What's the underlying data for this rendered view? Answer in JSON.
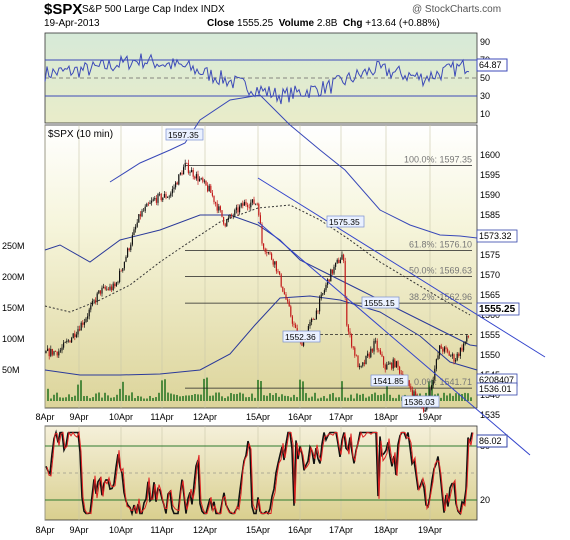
{
  "header": {
    "symbol": "$SPX",
    "name": "S&P 500 Large Cap Index",
    "exchange": "INDX",
    "source": "@ StockCharts.com",
    "date": "19-Apr-2013",
    "close_label": "Close",
    "close_value": "1555.25",
    "volume_label": "Volume",
    "volume_value": "2.8B",
    "chg_label": "Chg",
    "chg_value": "+13.64 (+0.88%)"
  },
  "rsi_panel": {
    "ticks": [
      "90",
      "70",
      "50",
      "30",
      "10"
    ],
    "last_label": "64.87"
  },
  "main_panel": {
    "label": "$SPX (10 min)",
    "price_ticks": [
      "1600",
      "1595",
      "1590",
      "1585",
      "1580",
      "1575",
      "1570",
      "1565",
      "1560",
      "1555",
      "1550",
      "1545",
      "1540",
      "1535"
    ],
    "volume_ticks": [
      "250M",
      "200M",
      "150M",
      "100M",
      "50M"
    ],
    "fib_levels": [
      {
        "label": "100.0%: 1597.35",
        "price": 1597.35
      },
      {
        "label": "61.8%: 1576.10",
        "price": 1576.1
      },
      {
        "label": "50.0%: 1569.63",
        "price": 1569.63
      },
      {
        "label": "38.2%: 1562.96",
        "price": 1562.96
      },
      {
        "label": "",
        "price": 1555.15
      },
      {
        "label": "0.0%: 1541.71",
        "price": 1541.71
      }
    ],
    "annotations": [
      {
        "text": "1597.35",
        "price": 1597.35
      },
      {
        "text": "1575.35",
        "price": 1575.35
      },
      {
        "text": "1555.15",
        "price": 1555.15
      },
      {
        "text": "1552.36",
        "price": 1552.36
      },
      {
        "text": "1541.85",
        "price": 1541.85
      },
      {
        "text": "1536.03",
        "price": 1536.03
      }
    ],
    "right_labels": [
      "1573.32",
      "1555.25",
      "6208407",
      "1536.01"
    ],
    "x_labels": [
      "8Apr",
      "9Apr",
      "10Apr",
      "11Apr",
      "12Apr",
      "15Apr",
      "16Apr",
      "17Apr",
      "18Apr",
      "19Apr"
    ]
  },
  "osc_panel": {
    "ticks": [
      "80",
      "20"
    ],
    "last_label": "86.02",
    "x_labels": [
      "8Apr",
      "9Apr",
      "10Apr",
      "11Apr",
      "12Apr",
      "15Apr",
      "16Apr",
      "17Apr",
      "18Apr",
      "19Apr"
    ]
  },
  "chart_data": {
    "type": "line",
    "title": "$SPX S&P 500 Large Cap Index INDX",
    "x": [
      "8Apr",
      "9Apr",
      "10Apr",
      "11Apr",
      "12Apr",
      "15Apr",
      "16Apr",
      "17Apr",
      "18Apr",
      "19Apr"
    ],
    "series": [
      {
        "name": "$SPX (10 min)",
        "points": [
          [
            "8Apr",
            1550.5
          ],
          [
            "8Apr",
            1552
          ],
          [
            "9Apr",
            1556
          ],
          [
            "9Apr",
            1564
          ],
          [
            "10Apr",
            1571
          ],
          [
            "10Apr",
            1582
          ],
          [
            "11Apr",
            1591
          ],
          [
            "11Apr",
            1597.35
          ],
          [
            "12Apr",
            1593
          ],
          [
            "12Apr",
            1586
          ],
          [
            "15Apr",
            1588
          ],
          [
            "15Apr",
            1575
          ],
          [
            "16Apr",
            1566
          ],
          [
            "16Apr",
            1552.36
          ],
          [
            "16Apr",
            1563
          ],
          [
            "17Apr",
            1575.35
          ],
          [
            "17Apr",
            1560
          ],
          [
            "17Apr",
            1548
          ],
          [
            "18Apr",
            1555.15
          ],
          [
            "18Apr",
            1548
          ],
          [
            "18Apr",
            1541.85
          ],
          [
            "19Apr",
            1536.03
          ],
          [
            "19Apr",
            1548
          ],
          [
            "19Apr",
            1555.25
          ]
        ]
      },
      {
        "name": "RSI",
        "values": [
          55,
          60,
          70,
          62,
          45,
          30,
          40,
          60,
          50,
          64.87
        ]
      },
      {
        "name": "Oscillator",
        "values": [
          50,
          85,
          20,
          85,
          25,
          85,
          15,
          90,
          20,
          86.02
        ]
      }
    ],
    "ylim": [
      1535,
      1600
    ]
  }
}
